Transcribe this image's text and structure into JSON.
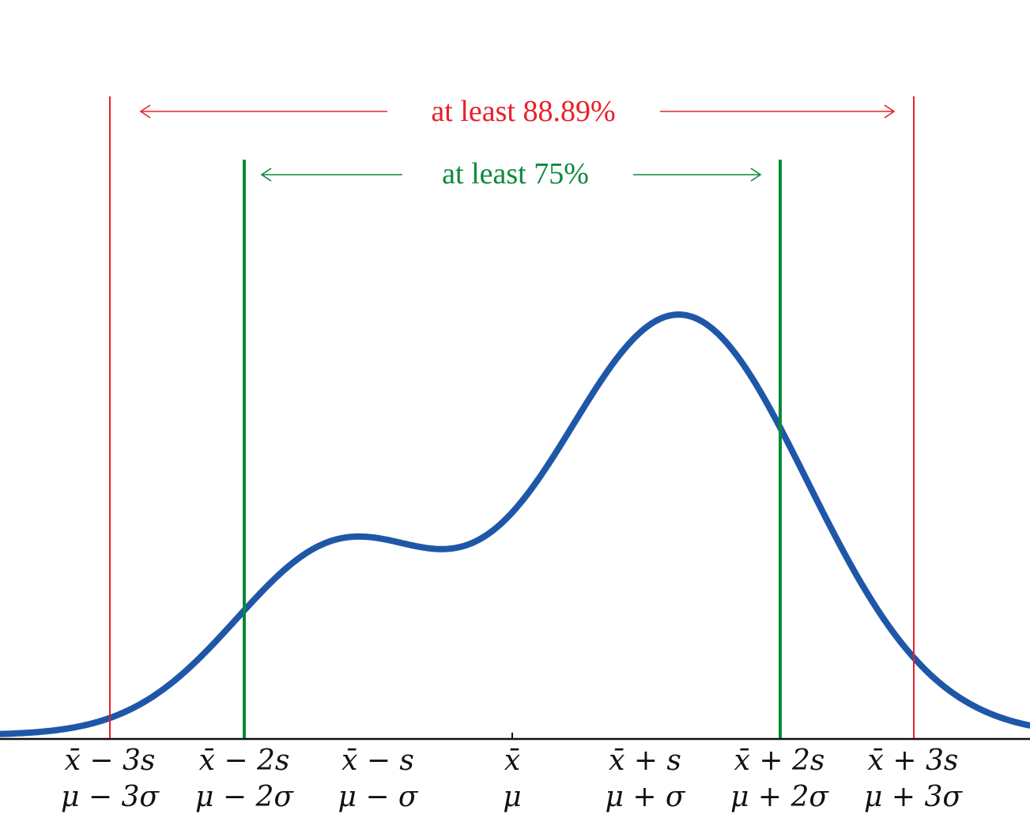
{
  "colors": {
    "curve": "#1f57a8",
    "outer_bounds": "#e8202a",
    "inner_bounds": "#0a8a3a",
    "axis": "#111111"
  },
  "annotations": {
    "outer": "at least 88.89%",
    "inner": "at least 75%"
  },
  "ticks": [
    {
      "line1": "x̄ − 3s",
      "line2": "μ − 3σ"
    },
    {
      "line1": "x̄ − 2s",
      "line2": "μ − 2σ"
    },
    {
      "line1": "x̄ − s",
      "line2": "μ − σ"
    },
    {
      "line1": "x̄",
      "line2": "μ"
    },
    {
      "line1": "x̄ + s",
      "line2": "μ + σ"
    },
    {
      "line1": "x̄ + 2s",
      "line2": "μ + 2σ"
    },
    {
      "line1": "x̄ + 3s",
      "line2": "μ + 3σ"
    }
  ],
  "chart_data": {
    "type": "line",
    "shape": "bimodal density curve",
    "x_units": "standard deviations from the mean",
    "x_range": [
      -3.8,
      3.8
    ],
    "peaks": [
      {
        "x": -1.28,
        "relative_height": 0.47
      },
      {
        "x": 1.25,
        "relative_height": 1.0
      }
    ],
    "trough": {
      "x": -0.31,
      "relative_height": 0.31
    },
    "bound_lines": [
      {
        "x": -3,
        "color": "#e8202a"
      },
      {
        "x": 3,
        "color": "#e8202a"
      },
      {
        "x": -2,
        "color": "#0a8a3a"
      },
      {
        "x": 2,
        "color": "#0a8a3a"
      }
    ]
  }
}
